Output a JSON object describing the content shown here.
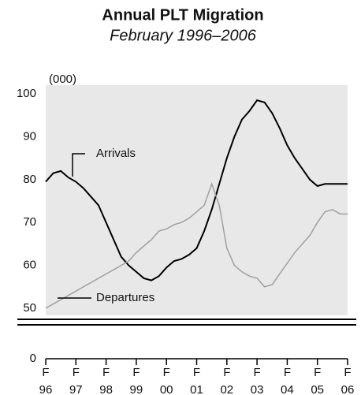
{
  "chart_data": {
    "type": "line",
    "title": "Annual PLT Migration",
    "subtitle": "February 1996–2006",
    "unit_label": "(000)",
    "x": [
      1996,
      1996.25,
      1996.5,
      1996.75,
      1997,
      1997.25,
      1997.5,
      1997.75,
      1998,
      1998.25,
      1998.5,
      1998.75,
      1999,
      1999.25,
      1999.5,
      1999.75,
      2000,
      2000.25,
      2000.5,
      2000.75,
      2001,
      2001.25,
      2001.5,
      2001.75,
      2002,
      2002.25,
      2002.5,
      2002.75,
      2003,
      2003.25,
      2003.5,
      2003.75,
      2004,
      2004.25,
      2004.5,
      2004.75,
      2005,
      2005.25,
      2005.5,
      2005.75,
      2006
    ],
    "series": [
      {
        "name": "Arrivals",
        "color": "#000000",
        "values": [
          79.5,
          81.5,
          82,
          80.5,
          79.5,
          78,
          76,
          74,
          70,
          66,
          62,
          60,
          58.5,
          57,
          56.5,
          57.5,
          59.5,
          61,
          61.5,
          62.5,
          64,
          68,
          73,
          79,
          85,
          90,
          94,
          96,
          98.5,
          98,
          95.5,
          92,
          88,
          85,
          82.5,
          80,
          78.5,
          79,
          79,
          79,
          79
        ]
      },
      {
        "name": "Departures",
        "color": "#a0a0a0",
        "values": [
          50,
          51,
          52,
          53,
          54,
          55,
          56,
          57,
          58,
          59,
          60,
          61,
          63,
          64.5,
          66,
          68,
          68.5,
          69.5,
          70,
          71,
          72.5,
          74,
          79,
          74,
          64,
          60,
          58.5,
          57.5,
          57,
          55,
          55.5,
          58,
          60.5,
          63,
          65,
          67,
          70,
          72.5,
          73,
          72,
          72
        ]
      }
    ],
    "xlim": [
      1996,
      2006
    ],
    "xticks": [
      {
        "value": 1996,
        "label": [
          "F",
          "96"
        ]
      },
      {
        "value": 1997,
        "label": [
          "F",
          "97"
        ]
      },
      {
        "value": 1998,
        "label": [
          "F",
          "98"
        ]
      },
      {
        "value": 1999,
        "label": [
          "F",
          "99"
        ]
      },
      {
        "value": 2000,
        "label": [
          "F",
          "00"
        ]
      },
      {
        "value": 2001,
        "label": [
          "F",
          "01"
        ]
      },
      {
        "value": 2002,
        "label": [
          "F",
          "02"
        ]
      },
      {
        "value": 2003,
        "label": [
          "F",
          "03"
        ]
      },
      {
        "value": 2004,
        "label": [
          "F",
          "04"
        ]
      },
      {
        "value": 2005,
        "label": [
          "F",
          "05"
        ]
      },
      {
        "value": 2006,
        "label": [
          "F",
          "06"
        ]
      }
    ],
    "ylim": [
      50,
      100
    ],
    "yticks": [
      0,
      50,
      60,
      70,
      80,
      90,
      100
    ],
    "axis_break": true,
    "plot_background": "#e8e8e8"
  }
}
